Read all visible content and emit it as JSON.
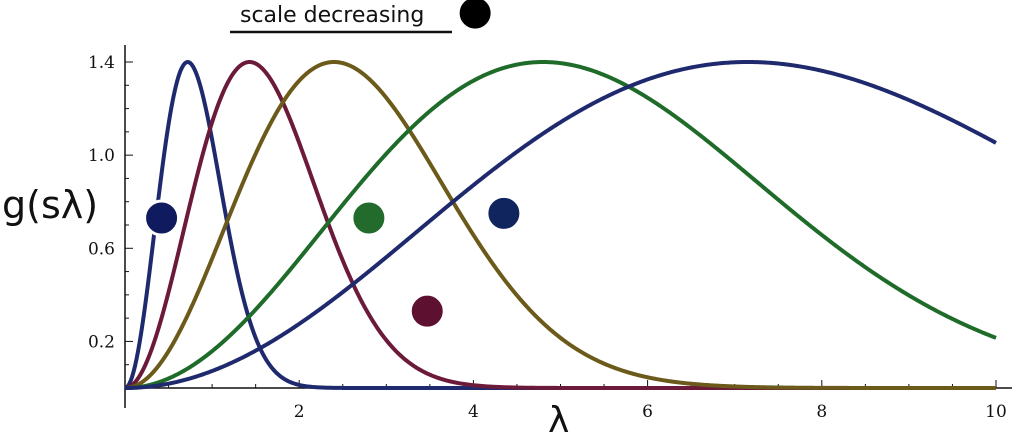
{
  "chart_data": {
    "type": "line",
    "title": "",
    "xlabel": "λ",
    "ylabel": "g(sλ)",
    "xlim": [
      0,
      10
    ],
    "ylim": [
      0,
      1.5
    ],
    "xticks": [
      2,
      4,
      6,
      8,
      10
    ],
    "yticks": [
      0.2,
      0.6,
      1.0,
      1.4
    ],
    "xtick_labels": [
      "2",
      "4",
      "6",
      "8",
      "10"
    ],
    "ytick_labels": [
      "0.2",
      "0.6",
      "1.0",
      "1.4"
    ],
    "grid": false,
    "annotation": "scale decreasing",
    "series": [
      {
        "color": "#1f2a6e",
        "peak_x": 0.72,
        "peak_y": 1.4
      },
      {
        "color": "#6b1a3a",
        "peak_x": 1.43,
        "peak_y": 1.4
      },
      {
        "color": "#6b5a1a",
        "peak_x": 2.4,
        "peak_y": 1.4
      },
      {
        "color": "#1f6b2a",
        "peak_x": 4.8,
        "peak_y": 1.4
      },
      {
        "color": "#1f2a6e",
        "peak_x": 7.15,
        "peak_y": 1.4
      }
    ],
    "markers": [
      {
        "x": 0.42,
        "y": 0.73,
        "color": "#101a5e"
      },
      {
        "x": 2.8,
        "y": 0.73,
        "color": "#236b2c"
      },
      {
        "x": 4.35,
        "y": 0.75,
        "color": "#10245e"
      },
      {
        "x": 3.47,
        "y": 0.33,
        "color": "#5e1030"
      },
      {
        "x": 4.02,
        "y": 1.61,
        "color": "#000000"
      }
    ]
  }
}
